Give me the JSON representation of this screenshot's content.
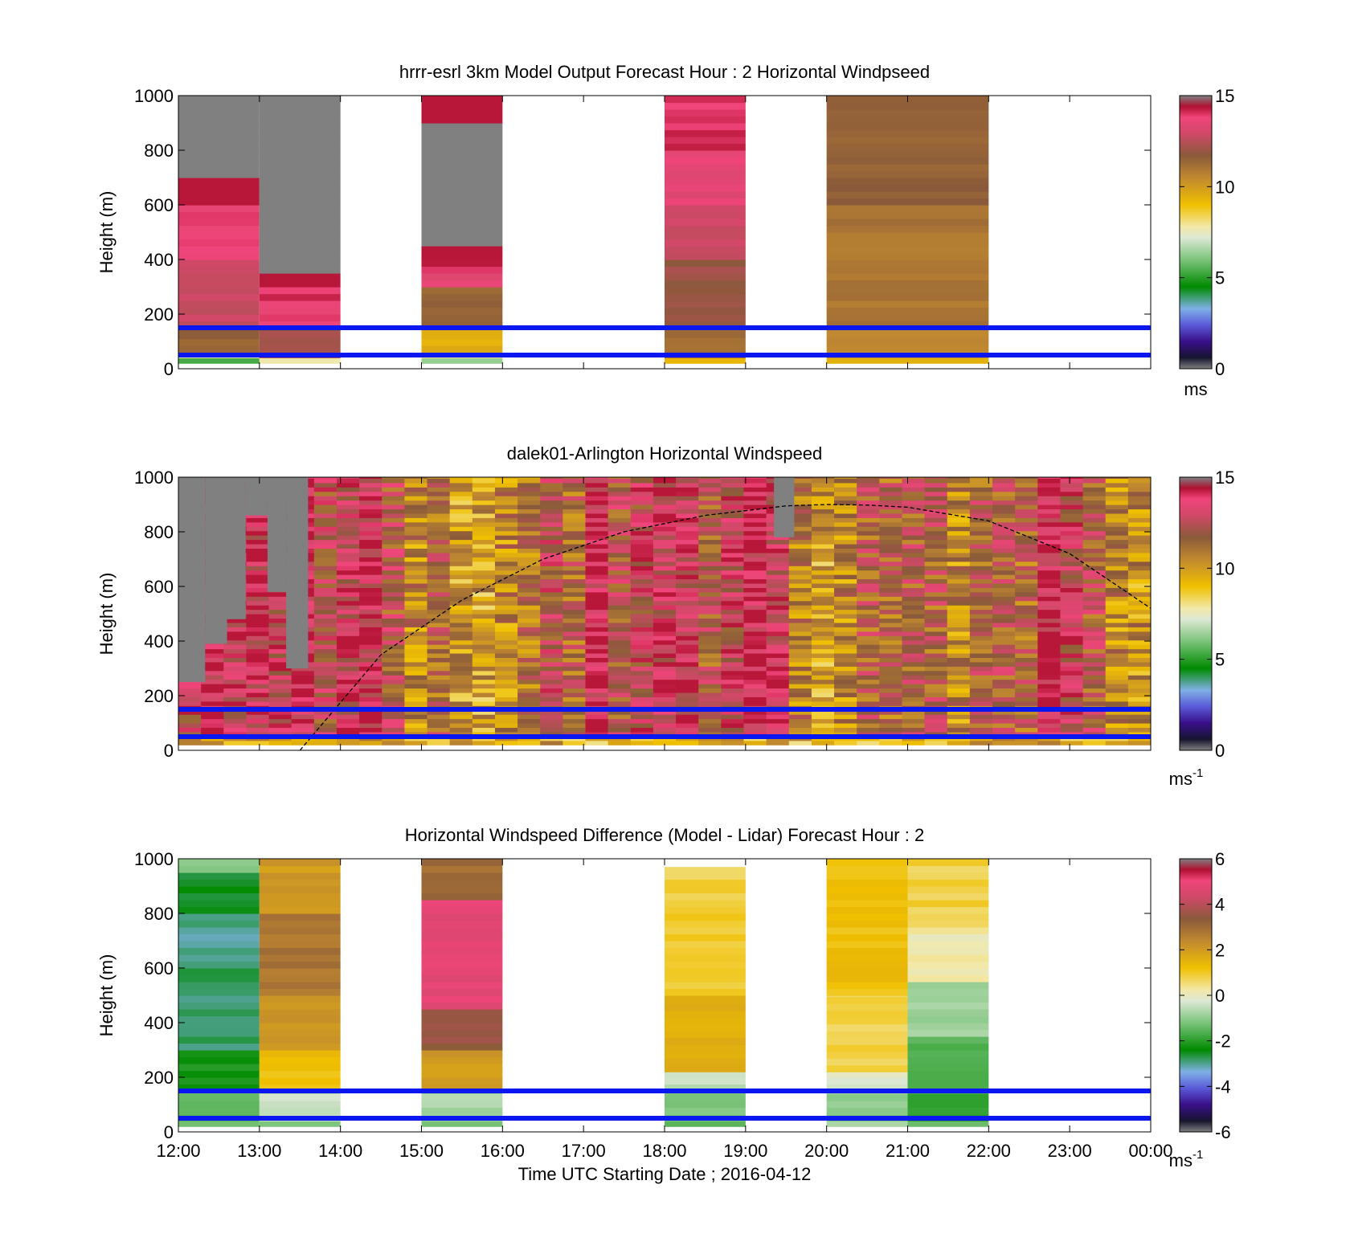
{
  "figure": {
    "xlabel": "Time UTC  Starting Date ; 2016-04-12",
    "x_tick_labels": [
      "12:00",
      "13:00",
      "14:00",
      "15:00",
      "16:00",
      "17:00",
      "18:00",
      "19:00",
      "20:00",
      "21:00",
      "22:00",
      "23:00",
      "00:00"
    ]
  },
  "chart_data": [
    {
      "type": "heatmap",
      "title": "hrrr-esrl 3km Model Output   Forecast Hour : 2 Horizontal Windpseed",
      "ylabel": "Height (m)",
      "ylim": [
        0,
        1000
      ],
      "y_ticks": [
        "0",
        "200",
        "400",
        "600",
        "800",
        "1000"
      ],
      "x_range_hours": [
        12,
        24
      ],
      "colorbar": {
        "range": [
          0,
          15
        ],
        "ticks": [
          "0",
          "5",
          "10",
          "15"
        ],
        "unit": "ms"
      },
      "reference_lines_m": [
        50,
        150
      ],
      "columns": [
        {
          "start_hour": 12,
          "end_hour": 13,
          "segments": [
            [
              20,
              40,
              5.5
            ],
            [
              40,
              60,
              7.8
            ],
            [
              60,
              150,
              11.5
            ],
            [
              150,
              400,
              12.8
            ],
            [
              400,
              600,
              13.8
            ],
            [
              600,
              700,
              14.8
            ],
            [
              700,
              1000,
              "nodata"
            ]
          ]
        },
        {
          "start_hour": 13,
          "end_hour": 14,
          "segments": [
            [
              20,
              40,
              7.8
            ],
            [
              40,
              150,
              12
            ],
            [
              150,
              250,
              13.8
            ],
            [
              250,
              300,
              14
            ],
            [
              300,
              350,
              14.8
            ],
            [
              350,
              1000,
              "nodata"
            ]
          ]
        },
        {
          "start_hour": 15,
          "end_hour": 16,
          "segments": [
            [
              20,
              40,
              6.2
            ],
            [
              40,
              60,
              7.8
            ],
            [
              60,
              150,
              9.5
            ],
            [
              150,
              300,
              11.5
            ],
            [
              300,
              350,
              13.5
            ],
            [
              350,
              400,
              14.2
            ],
            [
              400,
              450,
              14.8
            ],
            [
              450,
              900,
              "nodata"
            ],
            [
              900,
              1000,
              14.8
            ]
          ]
        },
        {
          "start_hour": 18,
          "end_hour": 19,
          "segments": [
            [
              20,
              40,
              9.5
            ],
            [
              40,
              150,
              11.2
            ],
            [
              150,
              400,
              12
            ],
            [
              400,
              600,
              12.8
            ],
            [
              600,
              800,
              13.5
            ],
            [
              800,
              1000,
              14
            ]
          ]
        },
        {
          "start_hour": 20,
          "end_hour": 22,
          "segments": [
            [
              20,
              40,
              9.5
            ],
            [
              40,
              150,
              10.5
            ],
            [
              150,
              600,
              11
            ],
            [
              600,
              1000,
              11.5
            ]
          ]
        }
      ]
    },
    {
      "type": "heatmap",
      "title": "dalek01-Arlington  Horizontal Windspeed",
      "ylabel": "Height (m)",
      "ylim": [
        0,
        1000
      ],
      "y_ticks": [
        "0",
        "200",
        "400",
        "600",
        "800",
        "1000"
      ],
      "x_range_hours": [
        12,
        24
      ],
      "colorbar": {
        "range": [
          0,
          15
        ],
        "ticks": [
          "0",
          "5",
          "10",
          "15"
        ],
        "unit": "ms",
        "unit_exponent": "-1"
      },
      "reference_lines_m": [
        50,
        150
      ],
      "boundary_layer_curve_m": [
        [
          13.5,
          0
        ],
        [
          14.5,
          350
        ],
        [
          15.5,
          550
        ],
        [
          16.5,
          700
        ],
        [
          17.5,
          800
        ],
        [
          18.5,
          860
        ],
        [
          19.5,
          895
        ],
        [
          20.0,
          900
        ],
        [
          20.5,
          898
        ],
        [
          21.0,
          890
        ],
        [
          22.0,
          840
        ],
        [
          23.0,
          720
        ],
        [
          24.0,
          520
        ]
      ],
      "columns_mean_speed": [
        12.8,
        14.0,
        13.5,
        13.8,
        13.2,
        14.2,
        12.5,
        13.2,
        13.8,
        12.2,
        10.5,
        11.5,
        10.0,
        9.8,
        10.5,
        11.0,
        12.5,
        11.5,
        13.8,
        12.2,
        12.8,
        13.5,
        13.5,
        12.0,
        13.0,
        14.2,
        13.5,
        10.8,
        9.8,
        10.5,
        11.8,
        11.5,
        12.0,
        11.8,
        10.5,
        11.8,
        12.0,
        11.5,
        14.2,
        13.0,
        12.0,
        10.5,
        10.2
      ],
      "nodata_top_m": [
        [
          12,
          12.33,
          250
        ],
        [
          12.33,
          12.6,
          390
        ],
        [
          12.6,
          12.83,
          480
        ],
        [
          12.83,
          13.1,
          860
        ],
        [
          13.1,
          13.33,
          580
        ],
        [
          13.33,
          13.6,
          300
        ],
        [
          19.35,
          19.6,
          780
        ]
      ]
    },
    {
      "type": "heatmap",
      "title": "Horizontal Windspeed Difference (Model - Lidar) Forecast Hour : 2",
      "ylabel": "Height (m)",
      "ylim": [
        0,
        1000
      ],
      "y_ticks": [
        "0",
        "200",
        "400",
        "600",
        "800",
        "1000"
      ],
      "x_range_hours": [
        12,
        24
      ],
      "colorbar": {
        "range": [
          -6,
          6
        ],
        "ticks": [
          "-6",
          "-4",
          "-2",
          "0",
          "2",
          "4",
          "6"
        ],
        "unit": "ms",
        "unit_exponent": "-1"
      },
      "reference_lines_m": [
        50,
        150
      ],
      "columns": [
        {
          "start_hour": 12,
          "end_hour": 13,
          "segments": [
            [
              20,
              40,
              -1.2
            ],
            [
              40,
              150,
              -1.5
            ],
            [
              150,
              300,
              -2.2
            ],
            [
              300,
              600,
              -2.8
            ],
            [
              600,
              800,
              -3.0
            ],
            [
              800,
              950,
              -2.5
            ],
            [
              950,
              1000,
              -1.2
            ]
          ]
        },
        {
          "start_hour": 13,
          "end_hour": 14,
          "segments": [
            [
              20,
              40,
              -1.0
            ],
            [
              40,
              150,
              -0.5
            ],
            [
              150,
              300,
              1.2
            ],
            [
              300,
              500,
              2.2
            ],
            [
              500,
              800,
              2.8
            ],
            [
              800,
              1000,
              2.0
            ]
          ]
        },
        {
          "start_hour": 15,
          "end_hour": 16,
          "segments": [
            [
              20,
              40,
              -1.2
            ],
            [
              40,
              150,
              -0.8
            ],
            [
              150,
              300,
              2.0
            ],
            [
              300,
              450,
              3.5
            ],
            [
              450,
              850,
              4.8
            ],
            [
              850,
              1000,
              3.0
            ]
          ]
        },
        {
          "start_hour": 18,
          "end_hour": 19,
          "segments": [
            [
              20,
              40,
              -1.5
            ],
            [
              40,
              150,
              -1.2
            ],
            [
              150,
              220,
              -0.5
            ],
            [
              220,
              500,
              1.5
            ],
            [
              500,
              800,
              1.0
            ],
            [
              800,
              970,
              0.8
            ]
          ]
        },
        {
          "start_hour": 20,
          "end_hour": 21,
          "segments": [
            [
              20,
              40,
              -0.8
            ],
            [
              40,
              150,
              -1.0
            ],
            [
              150,
              220,
              -0.2
            ],
            [
              220,
              500,
              0.8
            ],
            [
              500,
              1000,
              1.2
            ]
          ]
        },
        {
          "start_hour": 21,
          "end_hour": 22,
          "segments": [
            [
              20,
              40,
              -1.5
            ],
            [
              40,
              150,
              -1.8
            ],
            [
              150,
              350,
              -1.5
            ],
            [
              350,
              550,
              -0.8
            ],
            [
              550,
              750,
              0.2
            ],
            [
              750,
              1000,
              0.8
            ]
          ]
        }
      ]
    }
  ]
}
